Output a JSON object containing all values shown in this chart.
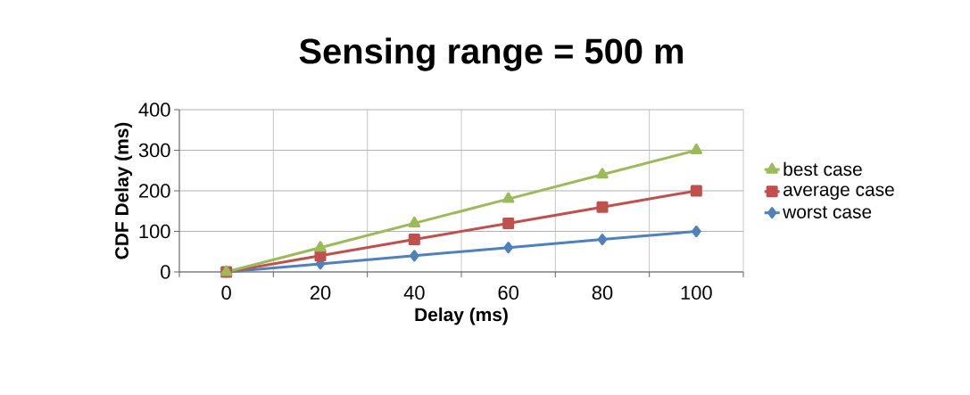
{
  "chart_data": {
    "type": "line",
    "title": "Sensing range = 500 m",
    "xlabel": "Delay (ms)",
    "ylabel": "CDF Delay (ms)",
    "categories": [
      "0",
      "20",
      "40",
      "60",
      "80",
      "100"
    ],
    "series": [
      {
        "name": "worst case",
        "color": "#4f81bd",
        "marker": "diamond",
        "values": [
          0,
          20,
          40,
          60,
          80,
          100
        ]
      },
      {
        "name": "average case",
        "color": "#c0504d",
        "marker": "square",
        "values": [
          0,
          40,
          80,
          120,
          160,
          200
        ]
      },
      {
        "name": "best case",
        "color": "#9bbb59",
        "marker": "triangle",
        "values": [
          0,
          60,
          120,
          180,
          240,
          300
        ]
      }
    ],
    "ylim": [
      0,
      400
    ],
    "yticks": [
      0,
      100,
      200,
      300,
      400
    ],
    "grid": true,
    "legend": "right",
    "line_style": "solid"
  }
}
